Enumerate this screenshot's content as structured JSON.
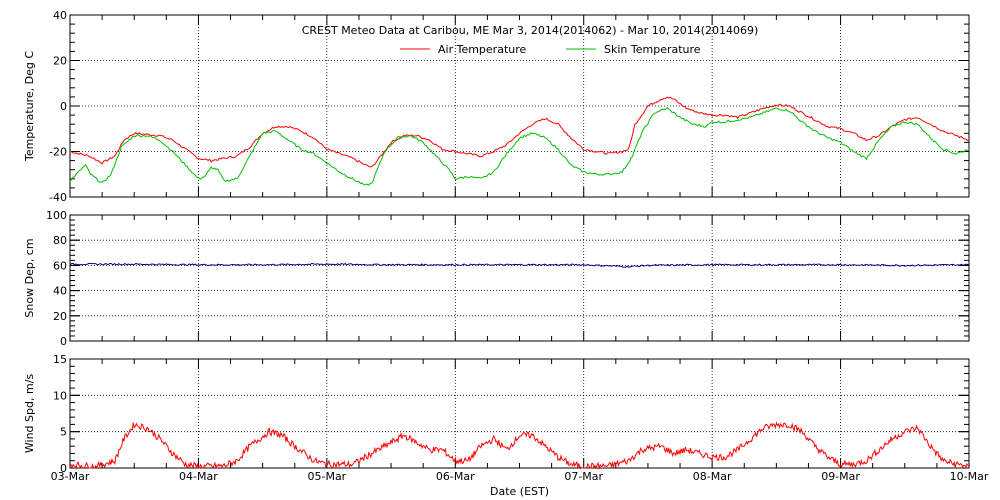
{
  "chart_data": [
    {
      "type": "line",
      "title": "CREST Meteo Data at Caribou, ME   Mar  3, 2014(2014062) - Mar 10, 2014(2014069)",
      "ylabel": "Temperature, Deg C",
      "ylim": [
        -40,
        40
      ],
      "yticks": [
        -40,
        -20,
        0,
        20,
        40
      ],
      "legend_position": "top-center",
      "grid": true,
      "series": [
        {
          "name": "Air Temperature",
          "color": "#ff0000",
          "points": [
            [
              0,
              -20
            ],
            [
              0.15,
              -22
            ],
            [
              0.25,
              -25
            ],
            [
              0.35,
              -22
            ],
            [
              0.42,
              -15
            ],
            [
              0.5,
              -12
            ],
            [
              0.6,
              -12.5
            ],
            [
              0.7,
              -13
            ],
            [
              0.8,
              -15
            ],
            [
              0.9,
              -19
            ],
            [
              1.0,
              -23
            ],
            [
              1.1,
              -24
            ],
            [
              1.2,
              -23
            ],
            [
              1.3,
              -22
            ],
            [
              1.4,
              -18
            ],
            [
              1.5,
              -12
            ],
            [
              1.6,
              -9
            ],
            [
              1.7,
              -9
            ],
            [
              1.8,
              -11
            ],
            [
              1.9,
              -14
            ],
            [
              2.0,
              -19
            ],
            [
              2.1,
              -21
            ],
            [
              2.2,
              -23
            ],
            [
              2.3,
              -26
            ],
            [
              2.35,
              -27
            ],
            [
              2.42,
              -22
            ],
            [
              2.5,
              -16
            ],
            [
              2.6,
              -13
            ],
            [
              2.7,
              -13
            ],
            [
              2.8,
              -15
            ],
            [
              2.9,
              -19
            ],
            [
              3.0,
              -20
            ],
            [
              3.1,
              -21
            ],
            [
              3.2,
              -22
            ],
            [
              3.3,
              -20
            ],
            [
              3.4,
              -17
            ],
            [
              3.5,
              -12
            ],
            [
              3.6,
              -8
            ],
            [
              3.7,
              -5.5
            ],
            [
              3.8,
              -8
            ],
            [
              3.9,
              -14
            ],
            [
              4.0,
              -19
            ],
            [
              4.1,
              -20
            ],
            [
              4.2,
              -21
            ],
            [
              4.3,
              -20
            ],
            [
              4.35,
              -19
            ],
            [
              4.4,
              -8
            ],
            [
              4.5,
              0
            ],
            [
              4.6,
              3
            ],
            [
              4.65,
              4
            ],
            [
              4.7,
              3
            ],
            [
              4.8,
              -1
            ],
            [
              4.9,
              -3
            ],
            [
              5.0,
              -4
            ],
            [
              5.1,
              -4
            ],
            [
              5.2,
              -5
            ],
            [
              5.3,
              -3
            ],
            [
              5.4,
              -1
            ],
            [
              5.5,
              0.5
            ],
            [
              5.6,
              0
            ],
            [
              5.7,
              -3
            ],
            [
              5.8,
              -6
            ],
            [
              5.9,
              -9
            ],
            [
              6.0,
              -10
            ],
            [
              6.1,
              -12
            ],
            [
              6.2,
              -15
            ],
            [
              6.3,
              -13
            ],
            [
              6.4,
              -9
            ],
            [
              6.5,
              -6
            ],
            [
              6.6,
              -5
            ],
            [
              6.7,
              -8
            ],
            [
              6.8,
              -11
            ],
            [
              6.9,
              -13
            ],
            [
              7.0,
              -15
            ]
          ]
        },
        {
          "name": "Skin Temperature",
          "color": "#00c000",
          "points": [
            [
              0,
              -33
            ],
            [
              0.05,
              -30
            ],
            [
              0.12,
              -26
            ],
            [
              0.16,
              -30
            ],
            [
              0.25,
              -34
            ],
            [
              0.32,
              -30
            ],
            [
              0.4,
              -18
            ],
            [
              0.5,
              -13
            ],
            [
              0.6,
              -13
            ],
            [
              0.7,
              -15
            ],
            [
              0.8,
              -20
            ],
            [
              0.9,
              -26
            ],
            [
              1.0,
              -32
            ],
            [
              1.05,
              -31
            ],
            [
              1.1,
              -27
            ],
            [
              1.15,
              -28
            ],
            [
              1.2,
              -33
            ],
            [
              1.3,
              -32
            ],
            [
              1.4,
              -22
            ],
            [
              1.5,
              -12
            ],
            [
              1.6,
              -11
            ],
            [
              1.7,
              -15
            ],
            [
              1.8,
              -19
            ],
            [
              1.9,
              -21
            ],
            [
              2.0,
              -25
            ],
            [
              2.1,
              -29
            ],
            [
              2.2,
              -32
            ],
            [
              2.3,
              -35
            ],
            [
              2.35,
              -34
            ],
            [
              2.45,
              -20
            ],
            [
              2.55,
              -14
            ],
            [
              2.65,
              -13
            ],
            [
              2.75,
              -16
            ],
            [
              2.85,
              -22
            ],
            [
              2.95,
              -28
            ],
            [
              3.0,
              -32
            ],
            [
              3.1,
              -31
            ],
            [
              3.2,
              -32
            ],
            [
              3.3,
              -29
            ],
            [
              3.4,
              -21
            ],
            [
              3.5,
              -14
            ],
            [
              3.6,
              -12
            ],
            [
              3.7,
              -14
            ],
            [
              3.8,
              -19
            ],
            [
              3.9,
              -26
            ],
            [
              4.0,
              -29
            ],
            [
              4.1,
              -30
            ],
            [
              4.2,
              -30
            ],
            [
              4.3,
              -29
            ],
            [
              4.38,
              -22
            ],
            [
              4.45,
              -12
            ],
            [
              4.55,
              -3
            ],
            [
              4.65,
              -1
            ],
            [
              4.75,
              -5
            ],
            [
              4.85,
              -8
            ],
            [
              4.95,
              -9
            ],
            [
              5.0,
              -7
            ],
            [
              5.1,
              -7
            ],
            [
              5.2,
              -6
            ],
            [
              5.3,
              -5
            ],
            [
              5.4,
              -3
            ],
            [
              5.5,
              -1
            ],
            [
              5.6,
              -2
            ],
            [
              5.7,
              -7
            ],
            [
              5.8,
              -11
            ],
            [
              5.9,
              -14
            ],
            [
              6.0,
              -16
            ],
            [
              6.1,
              -20
            ],
            [
              6.2,
              -23
            ],
            [
              6.3,
              -15
            ],
            [
              6.4,
              -9
            ],
            [
              6.5,
              -7
            ],
            [
              6.6,
              -8
            ],
            [
              6.7,
              -14
            ],
            [
              6.8,
              -19
            ],
            [
              6.9,
              -21
            ],
            [
              7.0,
              -19
            ]
          ]
        }
      ]
    },
    {
      "type": "line",
      "ylabel": "Snow Dep, cm",
      "ylim": [
        0,
        100
      ],
      "yticks": [
        0,
        20,
        40,
        60,
        80,
        100
      ],
      "grid": true,
      "series": [
        {
          "color": "#000080",
          "points": [
            [
              0,
              61
            ],
            [
              0.5,
              61
            ],
            [
              1.0,
              60.5
            ],
            [
              1.5,
              60.5
            ],
            [
              2.0,
              61
            ],
            [
              2.5,
              60.5
            ],
            [
              3.0,
              60.5
            ],
            [
              3.5,
              60.5
            ],
            [
              4.0,
              60.5
            ],
            [
              4.35,
              59
            ],
            [
              4.5,
              60
            ],
            [
              5.0,
              60.5
            ],
            [
              5.5,
              60.5
            ],
            [
              6.0,
              60.5
            ],
            [
              6.5,
              60
            ],
            [
              7.0,
              60.5
            ]
          ]
        }
      ]
    },
    {
      "type": "line",
      "xlabel": "Date (EST)",
      "ylabel": "Wind Spd, m/s",
      "ylim": [
        0,
        15
      ],
      "yticks": [
        0,
        5,
        10,
        15
      ],
      "xticks": [
        "03-Mar",
        "04-Mar",
        "05-Mar",
        "06-Mar",
        "07-Mar",
        "08-Mar",
        "09-Mar",
        "10-Mar"
      ],
      "xlim": [
        0,
        7
      ],
      "grid": true,
      "series": [
        {
          "color": "#ff0000",
          "points": [
            [
              0,
              0.5
            ],
            [
              0.2,
              0.2
            ],
            [
              0.35,
              1
            ],
            [
              0.42,
              4
            ],
            [
              0.5,
              6
            ],
            [
              0.6,
              5.5
            ],
            [
              0.7,
              4
            ],
            [
              0.8,
              2
            ],
            [
              0.9,
              0.5
            ],
            [
              1.0,
              0.2
            ],
            [
              1.2,
              0.3
            ],
            [
              1.3,
              1
            ],
            [
              1.4,
              3
            ],
            [
              1.55,
              5
            ],
            [
              1.65,
              4.5
            ],
            [
              1.75,
              3
            ],
            [
              1.9,
              1
            ],
            [
              2.0,
              0.5
            ],
            [
              2.2,
              0.5
            ],
            [
              2.35,
              2
            ],
            [
              2.5,
              3.5
            ],
            [
              2.6,
              4.5
            ],
            [
              2.7,
              3.5
            ],
            [
              2.8,
              2.5
            ],
            [
              2.9,
              2.5
            ],
            [
              3.0,
              1
            ],
            [
              3.1,
              1
            ],
            [
              3.2,
              3
            ],
            [
              3.3,
              4
            ],
            [
              3.4,
              2.5
            ],
            [
              3.5,
              4.5
            ],
            [
              3.6,
              4.5
            ],
            [
              3.7,
              3
            ],
            [
              3.8,
              1.5
            ],
            [
              3.9,
              0.5
            ],
            [
              4.0,
              0.2
            ],
            [
              4.2,
              0.3
            ],
            [
              4.35,
              1
            ],
            [
              4.45,
              2.5
            ],
            [
              4.6,
              3
            ],
            [
              4.7,
              2
            ],
            [
              4.8,
              2.5
            ],
            [
              4.9,
              2
            ],
            [
              5.0,
              1.5
            ],
            [
              5.1,
              1.5
            ],
            [
              5.2,
              2.5
            ],
            [
              5.3,
              4
            ],
            [
              5.4,
              5.5
            ],
            [
              5.5,
              6
            ],
            [
              5.6,
              6
            ],
            [
              5.7,
              5
            ],
            [
              5.8,
              3
            ],
            [
              5.9,
              1.5
            ],
            [
              6.0,
              0.5
            ],
            [
              6.1,
              0.5
            ],
            [
              6.2,
              1
            ],
            [
              6.3,
              2.5
            ],
            [
              6.4,
              4
            ],
            [
              6.5,
              5
            ],
            [
              6.6,
              5.5
            ],
            [
              6.7,
              3
            ],
            [
              6.8,
              1
            ],
            [
              6.9,
              0.5
            ],
            [
              7.0,
              0.3
            ]
          ]
        }
      ]
    }
  ]
}
